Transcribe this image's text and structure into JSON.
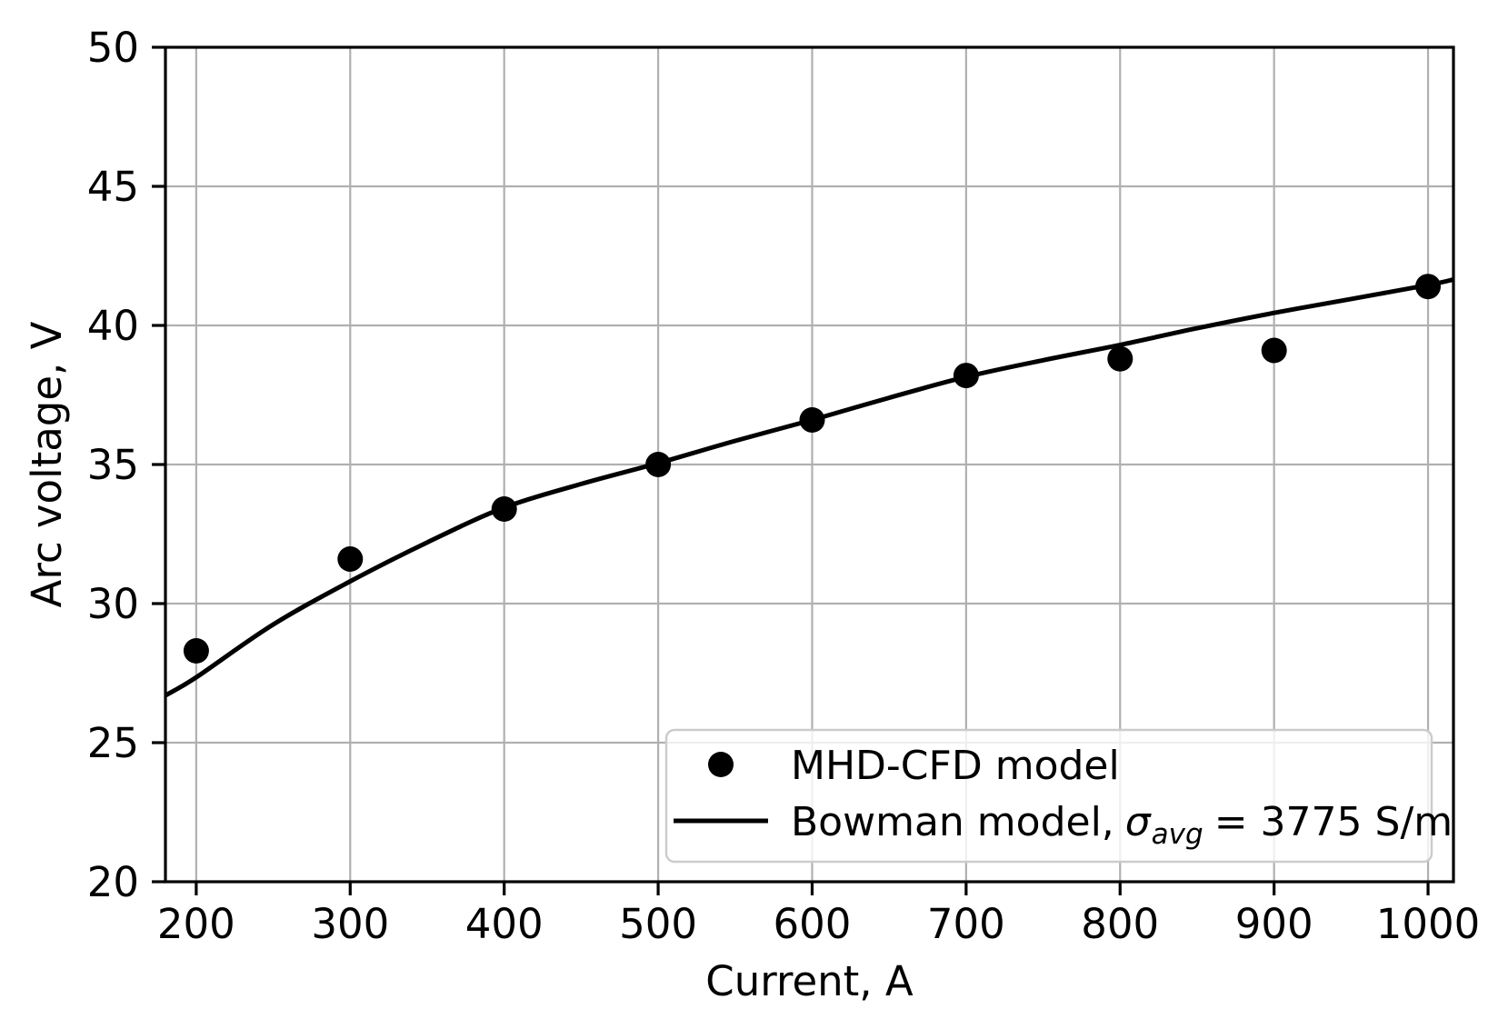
{
  "chart_data": {
    "type": "scatter",
    "title": "",
    "xlabel": "Current, A",
    "ylabel": "Arc voltage, V",
    "xlim": [
      180,
      1016.5
    ],
    "ylim": [
      20,
      50
    ],
    "xticks": [
      200,
      300,
      400,
      500,
      600,
      700,
      800,
      900,
      1000
    ],
    "yticks": [
      20,
      25,
      30,
      35,
      40,
      45,
      50
    ],
    "grid": true,
    "legend_position": "lower right",
    "series": [
      {
        "name": "MHD-CFD model",
        "type": "scatter",
        "color": "#000000",
        "x": [
          200,
          300,
          400,
          500,
          600,
          700,
          800,
          900,
          1000
        ],
        "y": [
          28.3,
          31.6,
          33.4,
          35.0,
          36.6,
          38.2,
          38.8,
          39.1,
          41.4
        ]
      },
      {
        "name": "Bowman model, sigma_avg = 3775 S/m",
        "type": "line",
        "color": "#000000",
        "x": [
          180,
          200,
          250,
          300,
          350,
          400,
          450,
          500,
          550,
          600,
          650,
          700,
          750,
          800,
          850,
          900,
          950,
          1000,
          1016.5
        ],
        "y": [
          26.7,
          27.35,
          29.25,
          30.8,
          32.2,
          33.45,
          34.3,
          35.05,
          35.85,
          36.6,
          37.4,
          38.15,
          38.75,
          39.3,
          39.9,
          40.45,
          40.95,
          41.45,
          41.65
        ]
      }
    ],
    "legend": [
      {
        "marker": "circle",
        "label": "MHD-CFD model"
      },
      {
        "marker": "line",
        "label_parts": {
          "prefix": "Bowman model,",
          "symbol": "σ",
          "subscript": "avg",
          "suffix": "= 3775 S/m"
        }
      }
    ],
    "colors": {
      "grid": "#b0b0b0",
      "axes": "#000000",
      "marker": "#000000",
      "line": "#000000",
      "legend_border": "#cccccc",
      "background": "#ffffff"
    }
  }
}
